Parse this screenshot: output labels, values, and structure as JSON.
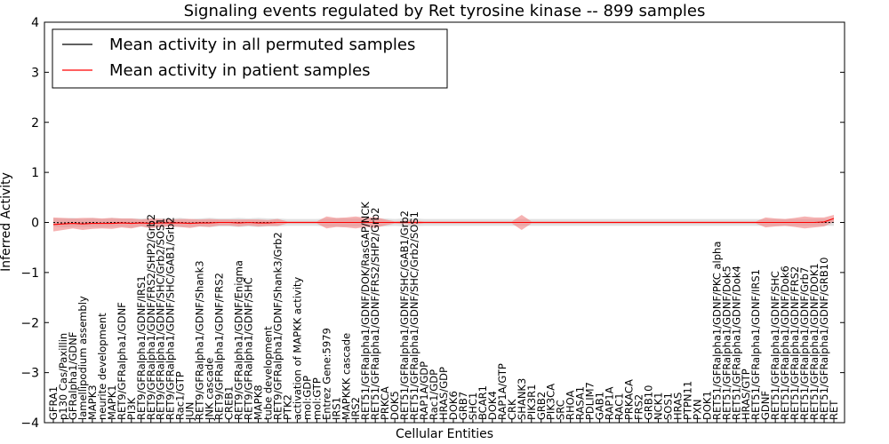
{
  "chart_data": {
    "type": "line",
    "title": "Signaling events regulated by Ret tyrosine kinase -- 899 samples",
    "xlabel": "Cellular Entities",
    "ylabel": "Inferred Activity",
    "ylim": [
      -4,
      4
    ],
    "yticks": [
      "−4",
      "−3",
      "−2",
      "−1",
      "0",
      "1",
      "2",
      "3",
      "4"
    ],
    "grid": false,
    "legend_position": "top-left",
    "colors": {
      "permuted": "#000000",
      "patient": "#ff0000",
      "patient_band": "#f08080",
      "permuted_band": "#c8c8c8"
    },
    "categories": [
      "GFRA1",
      "p130 Cas/Paxillin",
      "GFRalpha1/GDNF",
      "lamellipodium assembly",
      "MAPK3",
      "neurite development",
      "MAPK1",
      "RET9/GFRalpha1/GDNF",
      "PI3K",
      "RET9/GFRalpha1/GDNF/IRS1",
      "RET9/GFRalpha1/GDNF/FRS2/SHP2/Grb2",
      "RET9/GFRalpha1/GDNF/SHC/Grb2/SOS1",
      "RET9/GFRalpha1/GDNF/SHC/GAB1/Grb2",
      "Rac1/GTP",
      "JUN",
      "RET9/GFRalpha1/GDNF/Shank3",
      "JNK cascade",
      "RET9/GFRalpha1/GDNF/FRS2",
      "CREB1",
      "RET9/GFRalpha1/GDNF/Enigma",
      "RET9/GFRalpha1/GDNF/SHC",
      "MAPK8",
      "tube development",
      "RET9/GFRalpha1/GDNF/Shank3/Grb2",
      "PTK2",
      "activation of MAPKK activity",
      "mol:GDP",
      "mol:GTP",
      "Entrez Gene:5979",
      "IRS1",
      "MAPKKK cascade",
      "IRS2",
      "RET51/GFRalpha1/GDNF/DOK/RasGAP/NCK",
      "RET51/GFRalpha1/GDNF/FRS2/SHP2/Grb2",
      "PRKCA",
      "DOK5",
      "RET51/GFRalpha1/GDNF/SHC/GAB1/Grb2",
      "RET51/GFRalpha1/GDNF/SHC/Grb2/SOS1",
      "RAP1A/GDP",
      "Rac1/GDP",
      "HRAS/GDP",
      "DOK6",
      "GRB7",
      "SHC1",
      "BCAR1",
      "DOK4",
      "RAP1A/GTP",
      "CRK",
      "SHANK3",
      "PIK3R1",
      "GRB2",
      "PIK3CA",
      "SRC",
      "RHOA",
      "RASA1",
      "PDLIM7",
      "GAB1",
      "RAP1A",
      "RAC1",
      "PRKACA",
      "FRS2",
      "GRB10",
      "NCK1",
      "SOS1",
      "HRAS",
      "PTPN11",
      "PXN",
      "DOK1",
      "RET51/GFRalpha1/GDNF/PKC alpha",
      "RET51/GFRalpha1/GDNF/Dok5",
      "RET51/GFRalpha1/GDNF/Dok4",
      "HRAS/GTP",
      "RET51/GFRalpha1/GDNF/IRS1",
      "GDNF",
      "RET51/GFRalpha1/GDNF/SHC",
      "RET51/GFRalpha1/GDNF/Dok6",
      "RET51/GFRalpha1/GDNF/FRS2",
      "RET51/GFRalpha1/GDNF/Grb7",
      "RET51/GFRalpha1/GDNF/DOK1",
      "RET51/GFRalpha1/GDNF/GRB10",
      "RET"
    ],
    "series": [
      {
        "name": "Mean activity in all permuted samples",
        "values": [
          0.0,
          -0.01,
          0.0,
          -0.01,
          0.0,
          -0.01,
          0.0,
          0.0,
          -0.01,
          0.0,
          -0.01,
          0.0,
          0.0,
          0.0,
          -0.01,
          0.0,
          0.0,
          0.0,
          0.0,
          0.0,
          0.0,
          0.0,
          0.0,
          0.0,
          0.0,
          0.0,
          0.0,
          0.0,
          0.0,
          0.0,
          0.0,
          0.0,
          0.0,
          0.0,
          0.0,
          0.0,
          0.0,
          0.0,
          0.0,
          0.0,
          0.0,
          0.0,
          0.0,
          0.0,
          0.0,
          0.0,
          0.0,
          0.0,
          0.0,
          0.0,
          0.0,
          0.0,
          0.0,
          0.0,
          0.0,
          0.0,
          0.0,
          0.0,
          0.0,
          0.0,
          0.0,
          0.0,
          0.0,
          0.0,
          0.0,
          0.0,
          0.0,
          0.0,
          0.0,
          0.0,
          0.0,
          0.0,
          0.0,
          0.0,
          0.0,
          0.0,
          0.0,
          0.0,
          0.0,
          0.0,
          0.0
        ],
        "band": [
          0.08,
          0.09,
          0.09,
          0.08,
          0.09,
          0.08,
          0.09,
          0.08,
          0.09,
          0.08,
          0.09,
          0.08,
          0.08,
          0.09,
          0.08,
          0.08,
          0.09,
          0.08,
          0.08,
          0.09,
          0.08,
          0.09,
          0.08,
          0.08,
          0.07,
          0.07,
          0.07,
          0.07,
          0.08,
          0.08,
          0.08,
          0.08,
          0.08,
          0.08,
          0.08,
          0.07,
          0.08,
          0.08,
          0.07,
          0.07,
          0.07,
          0.07,
          0.07,
          0.07,
          0.07,
          0.07,
          0.07,
          0.07,
          0.07,
          0.07,
          0.07,
          0.07,
          0.07,
          0.07,
          0.07,
          0.07,
          0.07,
          0.07,
          0.07,
          0.07,
          0.07,
          0.07,
          0.07,
          0.07,
          0.07,
          0.07,
          0.07,
          0.07,
          0.07,
          0.07,
          0.07,
          0.07,
          0.07,
          0.07,
          0.07,
          0.07,
          0.07,
          0.07,
          0.07,
          0.07,
          0.07
        ]
      },
      {
        "name": "Mean activity in patient samples",
        "values": [
          -0.04,
          -0.03,
          -0.02,
          -0.03,
          -0.02,
          -0.02,
          -0.02,
          -0.01,
          -0.02,
          -0.01,
          -0.02,
          -0.01,
          -0.01,
          -0.01,
          -0.02,
          -0.01,
          -0.01,
          0.0,
          0.0,
          -0.01,
          0.0,
          -0.01,
          -0.01,
          0.0,
          0.0,
          0.0,
          0.0,
          0.0,
          0.0,
          0.0,
          0.0,
          0.0,
          0.0,
          0.0,
          0.0,
          0.0,
          0.0,
          0.0,
          0.0,
          0.0,
          0.0,
          0.0,
          0.0,
          0.0,
          0.0,
          0.0,
          0.0,
          0.0,
          0.0,
          0.0,
          0.0,
          0.0,
          0.0,
          0.0,
          0.0,
          0.0,
          0.0,
          0.0,
          0.0,
          0.0,
          0.0,
          0.0,
          0.0,
          0.0,
          0.0,
          0.0,
          0.0,
          0.0,
          0.0,
          0.0,
          0.0,
          0.0,
          0.0,
          0.0,
          0.0,
          0.0,
          0.0,
          0.0,
          0.0,
          0.01,
          0.08
        ],
        "band": [
          0.14,
          0.12,
          0.1,
          0.12,
          0.11,
          0.1,
          0.11,
          0.09,
          0.1,
          0.07,
          0.1,
          0.08,
          0.07,
          0.08,
          0.09,
          0.07,
          0.08,
          0.06,
          0.06,
          0.07,
          0.06,
          0.07,
          0.06,
          0.07,
          0.02,
          0.02,
          0.02,
          0.02,
          0.12,
          0.09,
          0.1,
          0.12,
          0.09,
          0.11,
          0.06,
          0.02,
          0.03,
          0.04,
          0.02,
          0.02,
          0.02,
          0.02,
          0.02,
          0.02,
          0.02,
          0.02,
          0.02,
          0.02,
          0.15,
          0.02,
          0.02,
          0.02,
          0.02,
          0.02,
          0.02,
          0.02,
          0.02,
          0.02,
          0.02,
          0.02,
          0.02,
          0.02,
          0.02,
          0.02,
          0.02,
          0.02,
          0.02,
          0.02,
          0.02,
          0.02,
          0.02,
          0.02,
          0.02,
          0.1,
          0.08,
          0.07,
          0.09,
          0.12,
          0.1,
          0.09,
          0.07
        ]
      }
    ]
  }
}
